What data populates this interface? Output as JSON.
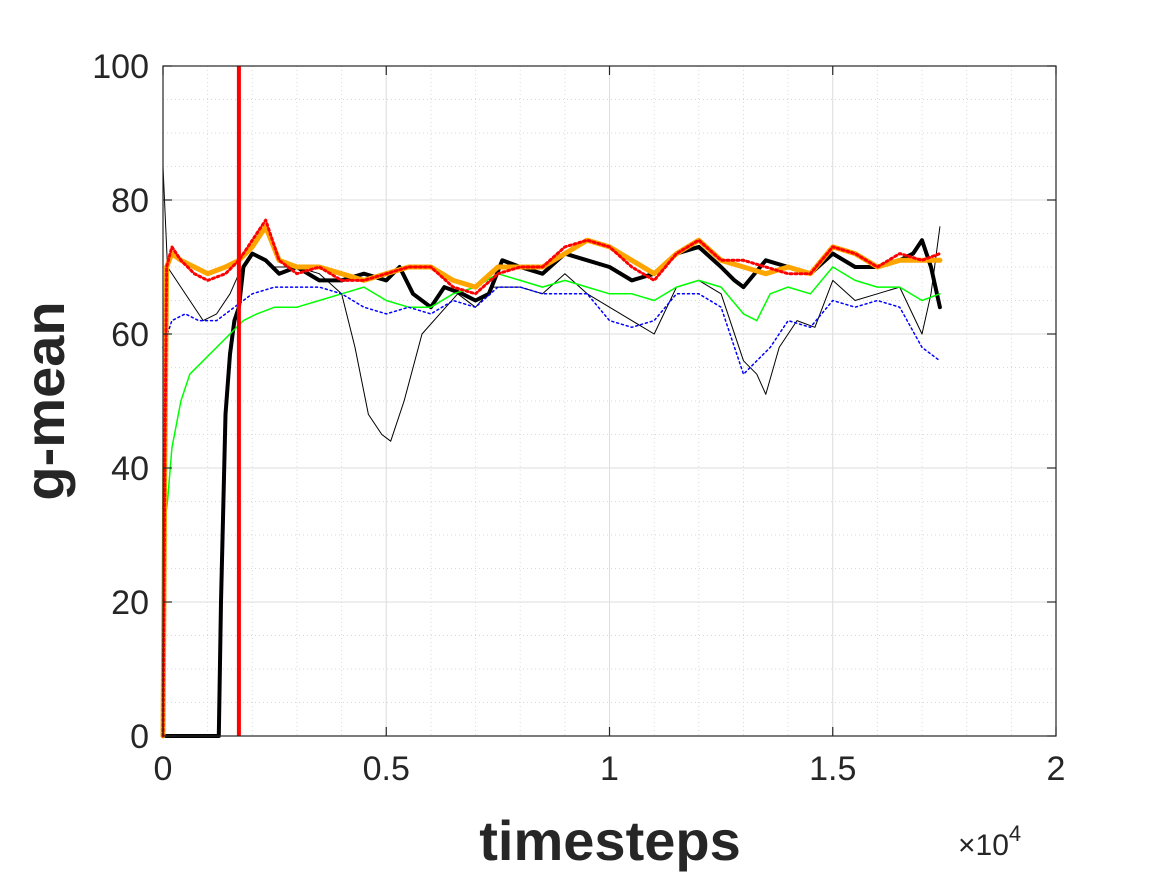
{
  "chart_data": {
    "type": "line",
    "title": "",
    "xlabel": "timesteps",
    "ylabel": "g-mean",
    "x_exponent_label": "×10",
    "x_exponent_power": "4",
    "xlim": [
      0,
      20000
    ],
    "ylim": [
      0,
      100
    ],
    "x_ticks": [
      0,
      5000,
      10000,
      15000,
      20000
    ],
    "x_tick_labels": [
      "0",
      "0.5",
      "1",
      "1.5",
      "2"
    ],
    "y_ticks": [
      0,
      20,
      40,
      60,
      80,
      100
    ],
    "y_tick_labels": [
      "0",
      "20",
      "40",
      "60",
      "80",
      "100"
    ],
    "grid": true,
    "minor_grid": true,
    "legend": "none",
    "vertical_line": {
      "x": 1700,
      "color": "#ff0000"
    },
    "series": [
      {
        "color": "#000000",
        "style": "solid",
        "width": 4,
        "points": [
          [
            0,
            0
          ],
          [
            1250,
            0
          ],
          [
            1300,
            20
          ],
          [
            1400,
            48
          ],
          [
            1500,
            57
          ],
          [
            1600,
            62
          ],
          [
            1700,
            64
          ],
          [
            1800,
            70
          ],
          [
            2000,
            72
          ],
          [
            2300,
            71
          ],
          [
            2600,
            69
          ],
          [
            3000,
            70
          ],
          [
            3500,
            68
          ],
          [
            4000,
            68
          ],
          [
            4500,
            69
          ],
          [
            5000,
            68
          ],
          [
            5300,
            70
          ],
          [
            5600,
            66
          ],
          [
            6000,
            64
          ],
          [
            6300,
            67
          ],
          [
            6700,
            66
          ],
          [
            7000,
            65
          ],
          [
            7300,
            66
          ],
          [
            7600,
            71
          ],
          [
            8000,
            70
          ],
          [
            8500,
            69
          ],
          [
            9000,
            72
          ],
          [
            9500,
            71
          ],
          [
            10000,
            70
          ],
          [
            10500,
            68
          ],
          [
            11000,
            69
          ],
          [
            11200,
            70
          ],
          [
            11500,
            72
          ],
          [
            12000,
            73
          ],
          [
            12500,
            70
          ],
          [
            12800,
            68
          ],
          [
            13000,
            67
          ],
          [
            13500,
            71
          ],
          [
            14000,
            70
          ],
          [
            14500,
            69
          ],
          [
            15000,
            72
          ],
          [
            15500,
            70
          ],
          [
            16000,
            70
          ],
          [
            16500,
            71
          ],
          [
            16800,
            72
          ],
          [
            17000,
            74
          ],
          [
            17200,
            70
          ],
          [
            17400,
            64
          ]
        ]
      },
      {
        "color": "#000000",
        "style": "solid",
        "width": 1,
        "points": [
          [
            0,
            85
          ],
          [
            100,
            70
          ],
          [
            300,
            68
          ],
          [
            600,
            65
          ],
          [
            900,
            62
          ],
          [
            1200,
            63
          ],
          [
            1500,
            66
          ],
          [
            1700,
            69
          ],
          [
            2000,
            72
          ],
          [
            2500,
            70
          ],
          [
            3000,
            70
          ],
          [
            3500,
            69
          ],
          [
            4000,
            66
          ],
          [
            4300,
            58
          ],
          [
            4600,
            48
          ],
          [
            4900,
            45
          ],
          [
            5100,
            44
          ],
          [
            5400,
            50
          ],
          [
            5800,
            60
          ],
          [
            6200,
            63
          ],
          [
            6600,
            66
          ],
          [
            7000,
            64
          ],
          [
            7400,
            67
          ],
          [
            8000,
            67
          ],
          [
            8500,
            66
          ],
          [
            9000,
            69
          ],
          [
            9500,
            66
          ],
          [
            10000,
            64
          ],
          [
            10500,
            62
          ],
          [
            11000,
            60
          ],
          [
            11500,
            67
          ],
          [
            12000,
            68
          ],
          [
            12500,
            66
          ],
          [
            13000,
            56
          ],
          [
            13300,
            54
          ],
          [
            13500,
            51
          ],
          [
            13800,
            58
          ],
          [
            14200,
            62
          ],
          [
            14600,
            61
          ],
          [
            15000,
            68
          ],
          [
            15500,
            65
          ],
          [
            16000,
            66
          ],
          [
            16500,
            67
          ],
          [
            17000,
            60
          ],
          [
            17200,
            66
          ],
          [
            17400,
            76
          ]
        ]
      },
      {
        "color": "#00ff00",
        "style": "solid",
        "width": 1.5,
        "points": [
          [
            0,
            30
          ],
          [
            100,
            35
          ],
          [
            200,
            43
          ],
          [
            400,
            50
          ],
          [
            600,
            54
          ],
          [
            900,
            56
          ],
          [
            1200,
            58
          ],
          [
            1500,
            60
          ],
          [
            1800,
            62
          ],
          [
            2100,
            63
          ],
          [
            2500,
            64
          ],
          [
            3000,
            64
          ],
          [
            3500,
            65
          ],
          [
            4000,
            66
          ],
          [
            4500,
            67
          ],
          [
            5000,
            65
          ],
          [
            5500,
            64
          ],
          [
            6000,
            64
          ],
          [
            6500,
            66
          ],
          [
            7000,
            67
          ],
          [
            7500,
            69
          ],
          [
            8000,
            68
          ],
          [
            8500,
            67
          ],
          [
            9000,
            68
          ],
          [
            9500,
            67
          ],
          [
            10000,
            66
          ],
          [
            10500,
            66
          ],
          [
            11000,
            65
          ],
          [
            11500,
            67
          ],
          [
            12000,
            68
          ],
          [
            12500,
            67
          ],
          [
            13000,
            63
          ],
          [
            13300,
            62
          ],
          [
            13600,
            66
          ],
          [
            14000,
            67
          ],
          [
            14500,
            66
          ],
          [
            15000,
            70
          ],
          [
            15500,
            68
          ],
          [
            16000,
            67
          ],
          [
            16500,
            67
          ],
          [
            17000,
            65
          ],
          [
            17400,
            66
          ]
        ]
      },
      {
        "color": "#0000ff",
        "style": "dotted",
        "width": 1.5,
        "points": [
          [
            0,
            58
          ],
          [
            200,
            62
          ],
          [
            500,
            63
          ],
          [
            800,
            62
          ],
          [
            1200,
            62
          ],
          [
            1600,
            64
          ],
          [
            2000,
            66
          ],
          [
            2500,
            67
          ],
          [
            3000,
            67
          ],
          [
            3500,
            67
          ],
          [
            4000,
            66
          ],
          [
            4500,
            64
          ],
          [
            5000,
            63
          ],
          [
            5500,
            64
          ],
          [
            6000,
            63
          ],
          [
            6500,
            65
          ],
          [
            7000,
            64
          ],
          [
            7500,
            67
          ],
          [
            8000,
            67
          ],
          [
            8500,
            66
          ],
          [
            9000,
            66
          ],
          [
            9500,
            66
          ],
          [
            10000,
            62
          ],
          [
            10500,
            61
          ],
          [
            11000,
            62
          ],
          [
            11500,
            66
          ],
          [
            12000,
            66
          ],
          [
            12500,
            64
          ],
          [
            12800,
            58
          ],
          [
            13000,
            54
          ],
          [
            13300,
            56
          ],
          [
            13600,
            58
          ],
          [
            14000,
            62
          ],
          [
            14500,
            61
          ],
          [
            15000,
            65
          ],
          [
            15500,
            64
          ],
          [
            16000,
            65
          ],
          [
            16500,
            64
          ],
          [
            17000,
            58
          ],
          [
            17400,
            56
          ]
        ]
      },
      {
        "color": "#ffa500",
        "style": "solid",
        "width": 5,
        "points": [
          [
            0,
            0
          ],
          [
            40,
            40
          ],
          [
            80,
            70
          ],
          [
            200,
            72
          ],
          [
            400,
            71
          ],
          [
            700,
            70
          ],
          [
            1000,
            69
          ],
          [
            1400,
            70
          ],
          [
            1700,
            71
          ],
          [
            2000,
            73
          ],
          [
            2300,
            76
          ],
          [
            2600,
            71
          ],
          [
            3000,
            70
          ],
          [
            3500,
            70
          ],
          [
            4000,
            69
          ],
          [
            4500,
            68
          ],
          [
            5000,
            69
          ],
          [
            5500,
            70
          ],
          [
            6000,
            70
          ],
          [
            6500,
            68
          ],
          [
            7000,
            67
          ],
          [
            7500,
            70
          ],
          [
            8000,
            70
          ],
          [
            8500,
            70
          ],
          [
            9000,
            72
          ],
          [
            9500,
            74
          ],
          [
            10000,
            73
          ],
          [
            10500,
            71
          ],
          [
            11000,
            69
          ],
          [
            11500,
            72
          ],
          [
            12000,
            74
          ],
          [
            12500,
            71
          ],
          [
            13000,
            70
          ],
          [
            13500,
            69
          ],
          [
            14000,
            70
          ],
          [
            14500,
            69
          ],
          [
            15000,
            73
          ],
          [
            15500,
            72
          ],
          [
            16000,
            70
          ],
          [
            16500,
            71
          ],
          [
            17000,
            71
          ],
          [
            17400,
            71
          ]
        ]
      },
      {
        "color": "#ff0000",
        "style": "dotted",
        "width": 3,
        "points": [
          [
            0,
            0
          ],
          [
            40,
            40
          ],
          [
            80,
            70
          ],
          [
            200,
            73
          ],
          [
            400,
            71
          ],
          [
            700,
            69
          ],
          [
            1000,
            68
          ],
          [
            1400,
            69
          ],
          [
            1700,
            71
          ],
          [
            2000,
            74
          ],
          [
            2300,
            77
          ],
          [
            2600,
            71
          ],
          [
            3000,
            69
          ],
          [
            3500,
            70
          ],
          [
            4000,
            68
          ],
          [
            4500,
            68
          ],
          [
            5000,
            69
          ],
          [
            5500,
            70
          ],
          [
            6000,
            70
          ],
          [
            6500,
            67
          ],
          [
            7000,
            66
          ],
          [
            7500,
            69
          ],
          [
            8000,
            70
          ],
          [
            8500,
            70
          ],
          [
            9000,
            73
          ],
          [
            9500,
            74
          ],
          [
            10000,
            73
          ],
          [
            10500,
            70
          ],
          [
            11000,
            68
          ],
          [
            11500,
            72
          ],
          [
            12000,
            74
          ],
          [
            12500,
            71
          ],
          [
            13000,
            71
          ],
          [
            13500,
            70
          ],
          [
            14000,
            69
          ],
          [
            14500,
            69
          ],
          [
            15000,
            73
          ],
          [
            15500,
            72
          ],
          [
            16000,
            70
          ],
          [
            16500,
            72
          ],
          [
            17000,
            71
          ],
          [
            17400,
            72
          ]
        ]
      }
    ]
  }
}
